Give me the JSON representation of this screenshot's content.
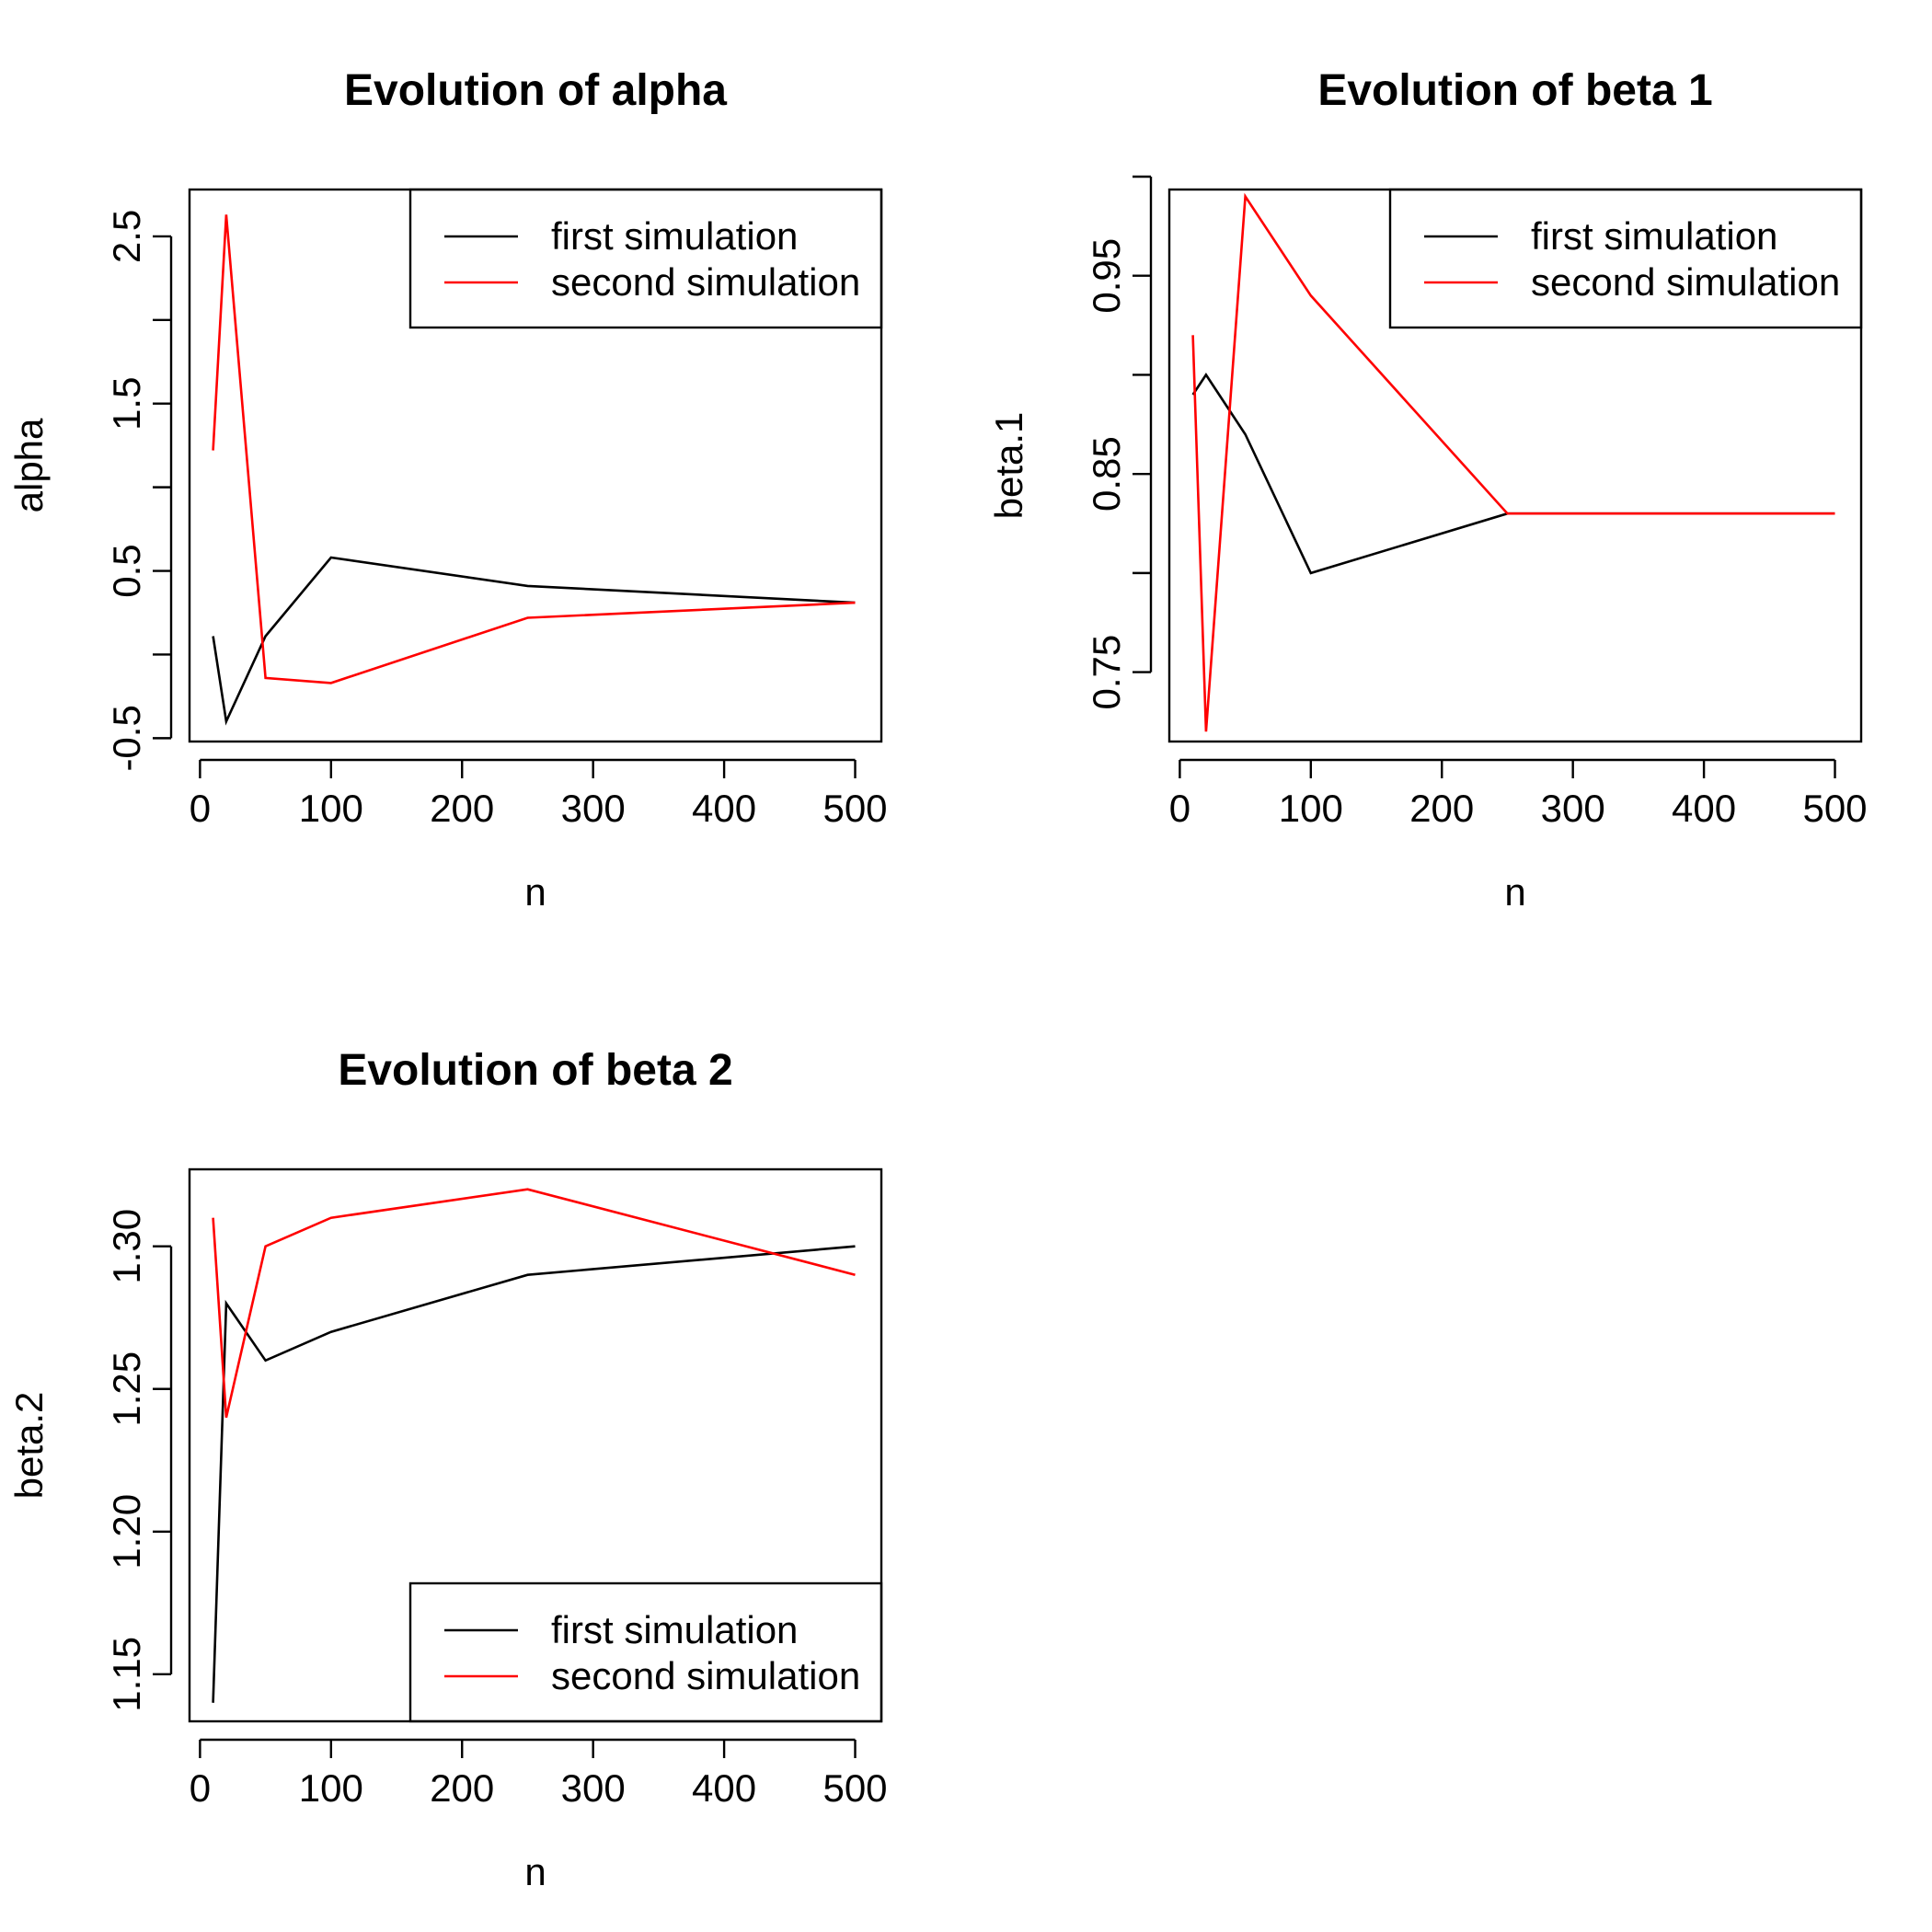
{
  "chart_data": [
    {
      "type": "line",
      "title": "Evolution of alpha",
      "xlabel": "n",
      "ylabel": "alpha",
      "x": [
        10,
        20,
        50,
        100,
        250,
        500
      ],
      "xlim": [
        -8,
        520
      ],
      "ylim": [
        -0.52,
        2.78
      ],
      "xticks": [
        0,
        100,
        200,
        300,
        400,
        500
      ],
      "yticks": [
        -0.5,
        0,
        0.5,
        1,
        1.5,
        2,
        2.5
      ],
      "ytick_labels": [
        "-0.5",
        "",
        "0.5",
        "",
        "1.5",
        "",
        "2.5"
      ],
      "legend_position": "top-right",
      "series": [
        {
          "name": "first simulation",
          "color": "#000000",
          "values": [
            0.11,
            -0.4,
            0.11,
            0.58,
            0.41,
            0.31
          ]
        },
        {
          "name": "second simulation",
          "color": "#ff0000",
          "values": [
            1.22,
            2.63,
            -0.14,
            -0.17,
            0.22,
            0.31
          ]
        }
      ]
    },
    {
      "type": "line",
      "title": "Evolution of beta 1",
      "xlabel": "n",
      "ylabel": "beta.1",
      "x": [
        10,
        20,
        50,
        100,
        250,
        500
      ],
      "xlim": [
        -8,
        520
      ],
      "ylim": [
        0.715,
        0.9935
      ],
      "xticks": [
        0,
        100,
        200,
        300,
        400,
        500
      ],
      "yticks": [
        0.75,
        0.8,
        0.85,
        0.9,
        0.95,
        1.0
      ],
      "ytick_labels": [
        "0.75",
        "",
        "0.85",
        "",
        "0.95",
        ""
      ],
      "legend_position": "top-right",
      "series": [
        {
          "name": "first simulation",
          "color": "#000000",
          "values": [
            0.89,
            0.9,
            0.87,
            0.8,
            0.83,
            0.83
          ]
        },
        {
          "name": "second simulation",
          "color": "#ff0000",
          "values": [
            0.92,
            0.72,
            0.99,
            0.94,
            0.83,
            0.83
          ]
        }
      ]
    },
    {
      "type": "line",
      "title": "Evolution of beta 2",
      "xlabel": "n",
      "ylabel": "beta.2",
      "x": [
        10,
        20,
        50,
        100,
        250,
        500
      ],
      "xlim": [
        -8,
        520
      ],
      "ylim": [
        1.1335,
        1.327
      ],
      "xticks": [
        0,
        100,
        200,
        300,
        400,
        500
      ],
      "yticks": [
        1.15,
        1.2,
        1.25,
        1.3
      ],
      "ytick_labels": [
        "1.15",
        "1.20",
        "1.25",
        "1.30"
      ],
      "legend_position": "bottom-right",
      "series": [
        {
          "name": "first simulation",
          "color": "#000000",
          "values": [
            1.14,
            1.28,
            1.26,
            1.27,
            1.29,
            1.3
          ]
        },
        {
          "name": "second simulation",
          "color": "#ff0000",
          "values": [
            1.31,
            1.24,
            1.3,
            1.31,
            1.32,
            1.29
          ]
        }
      ]
    }
  ]
}
